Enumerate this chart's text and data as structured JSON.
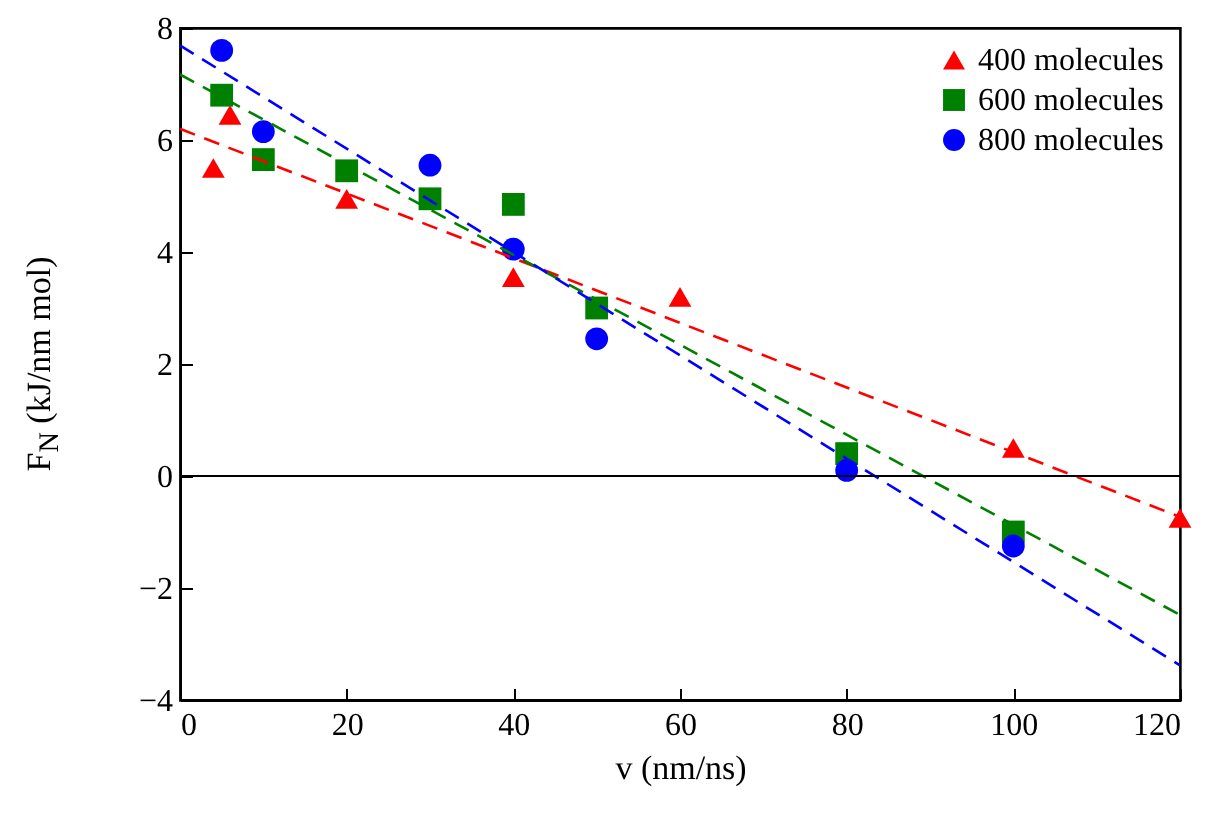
{
  "chart_data": {
    "type": "scatter",
    "xlabel": "v (nm/ns)",
    "ylabel": "F$_{N}$ (kJ/nm mol)",
    "xlim": [
      0,
      120
    ],
    "xticks": [
      0,
      20,
      40,
      60,
      80,
      100,
      120
    ],
    "ylim": [
      -4,
      8
    ],
    "yticks": [
      -4,
      -2,
      0,
      2,
      4,
      6,
      8
    ],
    "grid": false,
    "legend": "top right",
    "ref_lines": [
      {
        "axis": "y",
        "value": 0,
        "color": "#000000"
      }
    ],
    "series": [
      {
        "name": "400 molecules",
        "color": "#ff0000",
        "marker": "triangle",
        "x": [
          4,
          6,
          20,
          40,
          60,
          100,
          120
        ],
        "values": [
          5.5,
          6.45,
          4.95,
          3.55,
          3.2,
          0.5,
          -0.75
        ]
      },
      {
        "name": "600 molecules",
        "color": "#008000",
        "marker": "square",
        "x": [
          5,
          10,
          20,
          30,
          40,
          50,
          80,
          100
        ],
        "values": [
          6.8,
          5.65,
          5.45,
          4.95,
          4.85,
          3.0,
          0.4,
          -1.0
        ]
      },
      {
        "name": "800 molecules",
        "color": "#0000ff",
        "marker": "circle",
        "x": [
          5,
          10,
          30,
          40,
          50,
          80,
          100
        ],
        "values": [
          7.6,
          6.15,
          5.55,
          4.05,
          2.45,
          0.1,
          -1.25
        ]
      },
      {
        "type": "line",
        "color": "#ff0000",
        "line_style": "dashed",
        "x": [
          0,
          120
        ],
        "values": [
          6.2,
          -0.73
        ]
      },
      {
        "type": "line",
        "color": "#008000",
        "line_style": "dashed",
        "x": [
          0,
          120
        ],
        "values": [
          7.17,
          -2.48
        ]
      },
      {
        "type": "line",
        "color": "#0000ff",
        "line_style": "dashed",
        "x": [
          0,
          120
        ],
        "values": [
          7.69,
          -3.38
        ]
      }
    ]
  }
}
